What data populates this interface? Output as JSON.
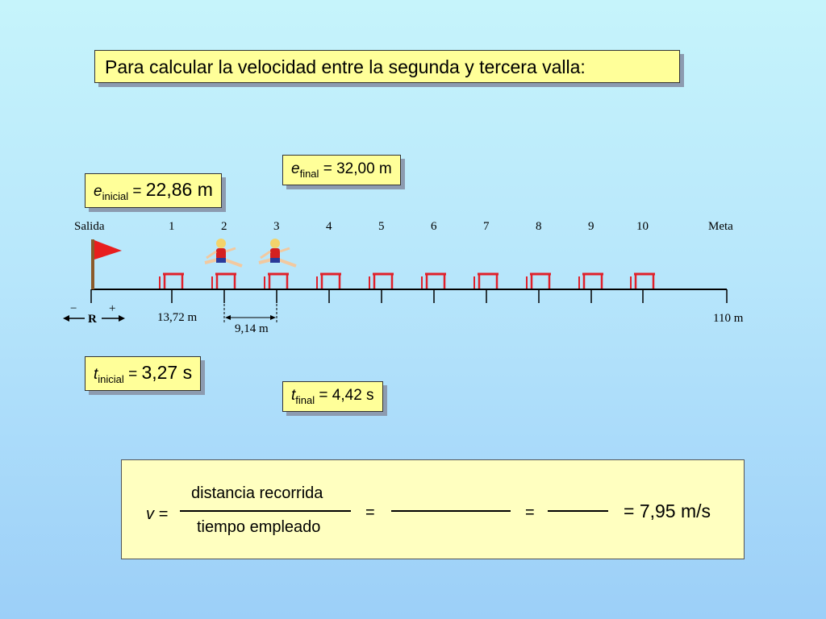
{
  "title": "Para calcular la velocidad entre la segunda y tercera valla:",
  "e_inicial": {
    "var": "e",
    "sub": "inicial",
    "eq": " = ",
    "value": "22,86 m"
  },
  "e_final": {
    "var": "e",
    "sub": "final",
    "eq": " = ",
    "value": "32,00 m"
  },
  "t_inicial": {
    "var": "t",
    "sub": "inicial",
    "eq": " = ",
    "value": "3,27 s"
  },
  "t_final": {
    "var": "t",
    "sub": "final",
    "eq": " = ",
    "value": "4,42 s"
  },
  "track": {
    "start_label": "Salida",
    "hurdle_labels": [
      "1",
      "2",
      "3",
      "4",
      "5",
      "6",
      "7",
      "8",
      "9",
      "10"
    ],
    "finish_label": "Meta",
    "first_hurdle_dist": "13,72 m",
    "hurdle_spacing": "9,14 m",
    "total_dist": "110 m",
    "ref_label": "R",
    "minus_sign": "−",
    "plus_sign": "+"
  },
  "formula": {
    "v": "v =",
    "numerator": "distancia recorrida",
    "denominator": "tiempo empleado",
    "eq1": "=",
    "eq2": "=",
    "result": "= 7,95 m/s"
  },
  "colors": {
    "box": "#ffff99",
    "flag": "#e81e1e",
    "hurdle": "#e0202a"
  }
}
